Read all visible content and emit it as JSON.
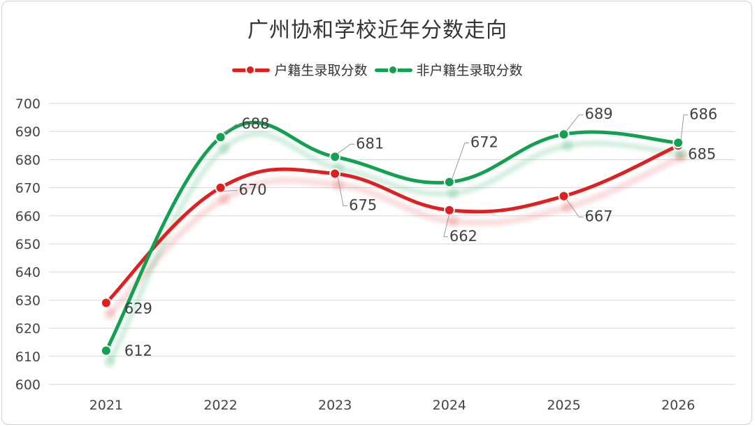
{
  "chart_data": {
    "type": "line",
    "title": "广州协和学校近年分数走向",
    "categories": [
      "2021",
      "2022",
      "2023",
      "2024",
      "2025",
      "2026"
    ],
    "ylim": [
      600,
      700
    ],
    "yticks": [
      600,
      610,
      620,
      630,
      640,
      650,
      660,
      670,
      680,
      690,
      700
    ],
    "grid": true,
    "legend_position": "top-center",
    "series": [
      {
        "name": "户籍生录取分数",
        "color": "#e02020",
        "values": [
          629,
          670,
          675,
          662,
          667,
          685
        ]
      },
      {
        "name": "非户籍生录取分数",
        "color": "#12a150",
        "values": [
          612,
          688,
          681,
          672,
          689,
          686
        ]
      }
    ]
  }
}
